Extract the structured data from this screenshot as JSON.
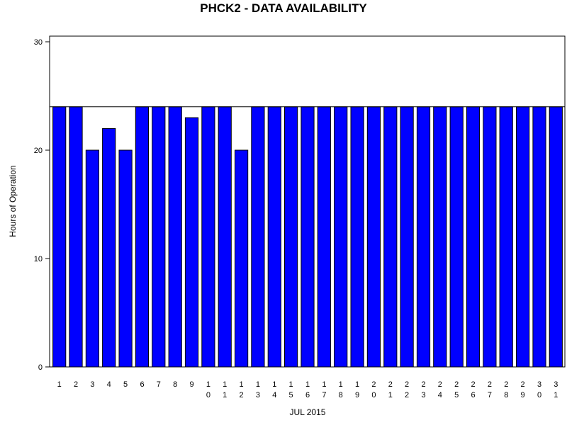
{
  "chart_data": {
    "type": "bar",
    "title": "PHCK2 - DATA AVAILABILITY",
    "xlabel": "JUL 2015",
    "ylabel": "Hours of Operation",
    "categories": [
      "1",
      "2",
      "3",
      "4",
      "5",
      "6",
      "7",
      "8",
      "9",
      "10",
      "11",
      "12",
      "13",
      "14",
      "15",
      "16",
      "17",
      "18",
      "19",
      "20",
      "21",
      "22",
      "23",
      "24",
      "25",
      "26",
      "27",
      "28",
      "29",
      "30",
      "31"
    ],
    "values": [
      24,
      24,
      20,
      22,
      20,
      24,
      24,
      24,
      23,
      24,
      24,
      20,
      24,
      24,
      24,
      24,
      24,
      24,
      24,
      24,
      24,
      24,
      24,
      24,
      24,
      24,
      24,
      24,
      24,
      24,
      24
    ],
    "ylim": [
      0,
      30
    ],
    "yticks": [
      0,
      10,
      20,
      30
    ],
    "reference_line": 24,
    "grid": false,
    "bar_color": "#0000ff",
    "bar_outline_color": "#000000"
  }
}
